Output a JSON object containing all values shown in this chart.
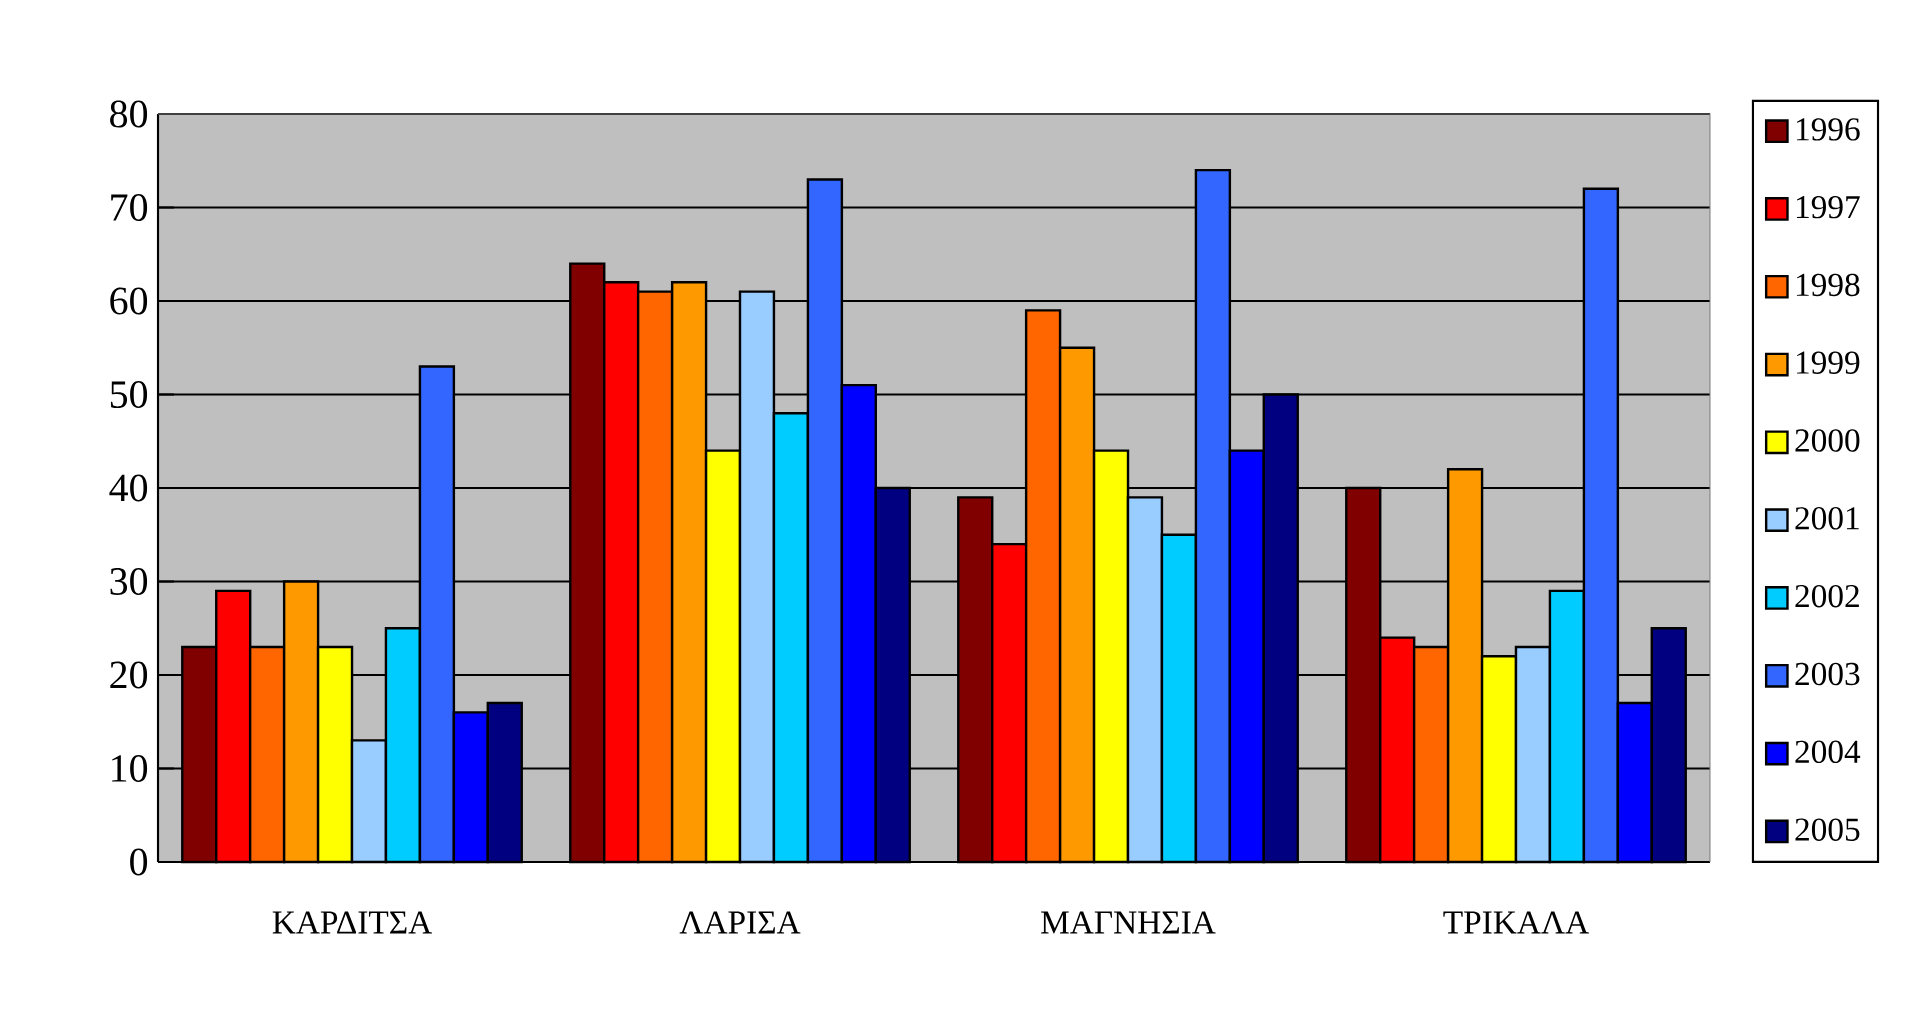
{
  "chart_data": {
    "type": "bar",
    "categories": [
      "ΚΑΡΔΙΤΣΑ",
      "ΛΑΡΙΣΑ",
      "ΜΑΓΝΗΣΙΑ",
      "ΤΡΙΚΑΛΑ"
    ],
    "series": [
      {
        "name": "1996",
        "color": "#800000",
        "values": [
          23,
          64,
          39,
          40
        ]
      },
      {
        "name": "1997",
        "color": "#ff0000",
        "values": [
          29,
          62,
          34,
          24
        ]
      },
      {
        "name": "1998",
        "color": "#ff6600",
        "values": [
          23,
          61,
          59,
          23
        ]
      },
      {
        "name": "1999",
        "color": "#ff9900",
        "values": [
          30,
          62,
          55,
          42
        ]
      },
      {
        "name": "2000",
        "color": "#ffff00",
        "values": [
          23,
          44,
          44,
          22
        ]
      },
      {
        "name": "2001",
        "color": "#99ccff",
        "values": [
          13,
          61,
          39,
          23
        ]
      },
      {
        "name": "2002",
        "color": "#00ccff",
        "values": [
          25,
          48,
          35,
          29
        ]
      },
      {
        "name": "2003",
        "color": "#3366ff",
        "values": [
          53,
          73,
          74,
          72
        ]
      },
      {
        "name": "2004",
        "color": "#0000ff",
        "values": [
          16,
          51,
          44,
          17
        ]
      },
      {
        "name": "2005",
        "color": "#000080",
        "values": [
          17,
          40,
          50,
          25
        ]
      }
    ],
    "ylim": [
      0,
      80
    ],
    "yticks": [
      0,
      10,
      20,
      30,
      40,
      50,
      60,
      70,
      80
    ],
    "grid": "y",
    "legend": "right"
  }
}
